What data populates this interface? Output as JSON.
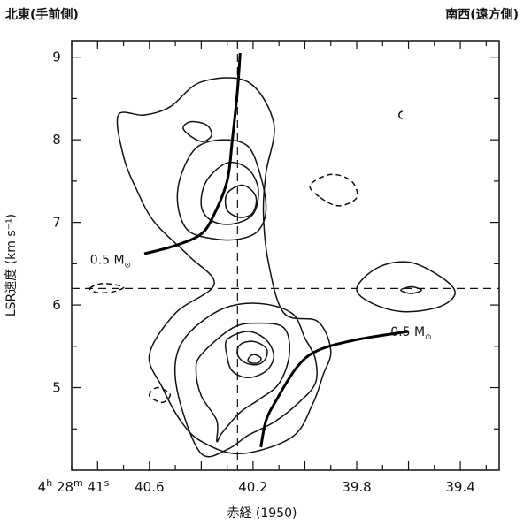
{
  "corner_left": "北東(手前側)",
  "corner_right": "南西(遠方側)",
  "chart_data": {
    "type": "contour",
    "xlabel": "赤経 (1950)",
    "ylabel": "LSR速度 (km s⁻¹)",
    "xlim": [
      40.9,
      39.25
    ],
    "ylim": [
      4.0,
      9.2
    ],
    "x_first_tick": {
      "h": "4",
      "m": "28",
      "s": "41",
      "sup_h": "h",
      "sup_m": "m",
      "sup_s": "s"
    },
    "x_ticks": [
      {
        "value": 40.6,
        "label": "40.6"
      },
      {
        "value": 40.2,
        "label": "40.2"
      },
      {
        "value": 39.8,
        "label": "39.8"
      },
      {
        "value": 39.4,
        "label": "39.4"
      }
    ],
    "y_ticks": [
      {
        "value": 5,
        "label": "5"
      },
      {
        "value": 6,
        "label": "6"
      },
      {
        "value": 7,
        "label": "7"
      },
      {
        "value": 8,
        "label": "8"
      },
      {
        "value": 9,
        "label": "9"
      }
    ],
    "reference_lines": {
      "ra": 40.26,
      "velocity": 6.2
    },
    "annotations": [
      {
        "text": "0.5 M",
        "symbol": "⊙",
        "x": 40.75,
        "y": 6.55
      },
      {
        "text": "0.5 M",
        "symbol": "⊙",
        "x": 39.59,
        "y": 5.68
      }
    ],
    "rotation_curves": [
      {
        "name": "upper",
        "points": [
          [
            40.62,
            6.62
          ],
          [
            40.5,
            6.72
          ],
          [
            40.4,
            6.86
          ],
          [
            40.35,
            7.1
          ],
          [
            40.3,
            7.5
          ],
          [
            40.28,
            8.0
          ],
          [
            40.26,
            8.6
          ],
          [
            40.25,
            9.05
          ]
        ]
      },
      {
        "name": "lower",
        "points": [
          [
            40.17,
            4.28
          ],
          [
            40.15,
            4.6
          ],
          [
            40.11,
            4.85
          ],
          [
            40.03,
            5.25
          ],
          [
            39.95,
            5.45
          ],
          [
            39.8,
            5.58
          ],
          [
            39.6,
            5.68
          ]
        ]
      }
    ],
    "contours_solid": [
      [
        [
          40.34,
          4.35
        ],
        [
          40.34,
          4.6
        ],
        [
          40.4,
          4.9
        ],
        [
          40.42,
          5.2
        ],
        [
          40.4,
          5.4
        ],
        [
          40.28,
          5.72
        ],
        [
          40.18,
          5.78
        ],
        [
          40.08,
          5.72
        ],
        [
          40.06,
          5.4
        ],
        [
          40.1,
          5.05
        ],
        [
          40.18,
          4.85
        ],
        [
          40.25,
          4.7
        ],
        [
          40.32,
          4.45
        ]
      ],
      [
        [
          40.4,
          4.2
        ],
        [
          40.48,
          4.8
        ],
        [
          40.5,
          5.3
        ],
        [
          40.45,
          5.65
        ],
        [
          40.32,
          5.95
        ],
        [
          40.18,
          6.02
        ],
        [
          40.05,
          5.9
        ],
        [
          40.0,
          5.6
        ],
        [
          39.96,
          5.35
        ],
        [
          39.96,
          5.05
        ],
        [
          40.03,
          4.8
        ],
        [
          40.12,
          4.58
        ],
        [
          40.22,
          4.42
        ],
        [
          40.3,
          4.25
        ]
      ],
      [
        [
          40.3,
          5.38
        ],
        [
          40.3,
          5.58
        ],
        [
          40.22,
          5.68
        ],
        [
          40.15,
          5.58
        ],
        [
          40.12,
          5.38
        ],
        [
          40.15,
          5.2
        ],
        [
          40.22,
          5.12
        ],
        [
          40.28,
          5.2
        ]
      ],
      [
        [
          40.26,
          5.4
        ],
        [
          40.25,
          5.52
        ],
        [
          40.2,
          5.56
        ],
        [
          40.15,
          5.48
        ],
        [
          40.15,
          5.36
        ],
        [
          40.18,
          5.28
        ],
        [
          40.23,
          5.3
        ]
      ],
      [
        [
          40.22,
          5.34
        ],
        [
          40.2,
          5.4
        ],
        [
          40.17,
          5.36
        ],
        [
          40.18,
          5.3
        ],
        [
          40.21,
          5.3
        ]
      ],
      [
        [
          40.05,
          4.4
        ],
        [
          39.97,
          4.8
        ],
        [
          39.93,
          5.15
        ],
        [
          39.9,
          5.45
        ],
        [
          39.95,
          5.8
        ],
        [
          40.08,
          5.9
        ],
        [
          40.14,
          6.5
        ],
        [
          40.16,
          7.1
        ],
        [
          40.15,
          7.6
        ],
        [
          40.12,
          8.2
        ],
        [
          40.22,
          8.7
        ],
        [
          40.4,
          8.7
        ],
        [
          40.52,
          8.4
        ],
        [
          40.62,
          8.3
        ],
        [
          40.72,
          8.3
        ],
        [
          40.7,
          7.8
        ],
        [
          40.65,
          7.4
        ],
        [
          40.58,
          7.0
        ],
        [
          40.45,
          6.6
        ],
        [
          40.35,
          6.25
        ],
        [
          40.5,
          5.9
        ],
        [
          40.6,
          5.4
        ],
        [
          40.55,
          5.0
        ],
        [
          40.48,
          4.6
        ],
        [
          40.4,
          4.35
        ],
        [
          40.25,
          4.2
        ]
      ],
      [
        [
          40.49,
          7.2
        ],
        [
          40.48,
          7.55
        ],
        [
          40.42,
          7.9
        ],
        [
          40.32,
          8.0
        ],
        [
          40.22,
          7.92
        ],
        [
          40.17,
          7.55
        ],
        [
          40.15,
          7.15
        ],
        [
          40.18,
          6.9
        ],
        [
          40.25,
          6.8
        ],
        [
          40.35,
          6.8
        ],
        [
          40.45,
          6.9
        ]
      ],
      [
        [
          40.4,
          7.2
        ],
        [
          40.38,
          7.5
        ],
        [
          40.3,
          7.72
        ],
        [
          40.22,
          7.65
        ],
        [
          40.18,
          7.4
        ],
        [
          40.2,
          7.1
        ],
        [
          40.28,
          6.98
        ],
        [
          40.36,
          7.02
        ]
      ],
      [
        [
          40.3,
          7.15
        ],
        [
          40.3,
          7.35
        ],
        [
          40.24,
          7.45
        ],
        [
          40.19,
          7.32
        ],
        [
          40.2,
          7.12
        ],
        [
          40.25,
          7.06
        ]
      ],
      [
        [
          40.43,
          8.02
        ],
        [
          40.47,
          8.14
        ],
        [
          40.44,
          8.22
        ],
        [
          40.38,
          8.18
        ],
        [
          40.36,
          8.06
        ],
        [
          40.39,
          7.98
        ]
      ],
      [
        [
          39.8,
          6.2
        ],
        [
          39.72,
          6.45
        ],
        [
          39.6,
          6.52
        ],
        [
          39.48,
          6.35
        ],
        [
          39.42,
          6.15
        ],
        [
          39.48,
          5.98
        ],
        [
          39.62,
          5.92
        ],
        [
          39.74,
          6.02
        ]
      ],
      [
        [
          39.63,
          6.18
        ],
        [
          39.59,
          6.22
        ],
        [
          39.55,
          6.18
        ],
        [
          39.59,
          6.14
        ]
      ]
    ],
    "contours_dashed": [
      [
        [
          39.94,
          7.3
        ],
        [
          39.87,
          7.2
        ],
        [
          39.8,
          7.3
        ],
        [
          39.82,
          7.5
        ],
        [
          39.9,
          7.58
        ],
        [
          39.98,
          7.45
        ]
      ],
      [
        [
          40.6,
          4.9
        ],
        [
          40.57,
          5.0
        ],
        [
          40.52,
          4.92
        ],
        [
          40.55,
          4.82
        ]
      ],
      [
        [
          40.83,
          6.2
        ],
        [
          40.78,
          6.26
        ],
        [
          40.7,
          6.22
        ],
        [
          40.74,
          6.16
        ],
        [
          40.8,
          6.15
        ]
      ]
    ],
    "small_arc": {
      "x": 39.63,
      "y": 8.3
    }
  }
}
